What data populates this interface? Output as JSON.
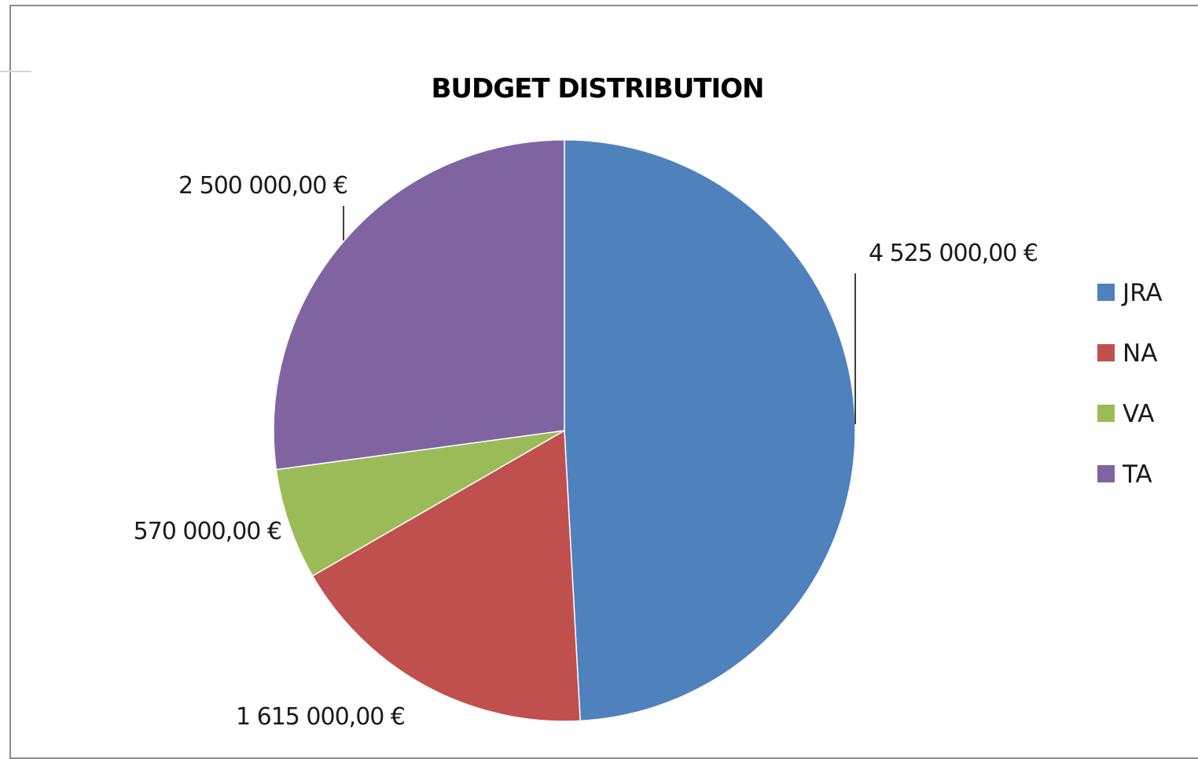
{
  "chart_data": {
    "type": "pie",
    "title": "BUDGET DISTRIBUTION",
    "categories": [
      "JRA",
      "NA",
      "VA",
      "TA"
    ],
    "values": [
      4525000,
      1615000,
      570000,
      2500000
    ],
    "data_labels": [
      "4 525 000,00 €",
      "1 615 000,00 €",
      "570 000,00 €",
      "2 500 000,00 €"
    ],
    "colors": [
      "#4f81bd",
      "#c0504d",
      "#9bbb59",
      "#8064a2"
    ],
    "legend_position": "right",
    "start_angle": "12-o'clock",
    "direction": "clockwise"
  }
}
